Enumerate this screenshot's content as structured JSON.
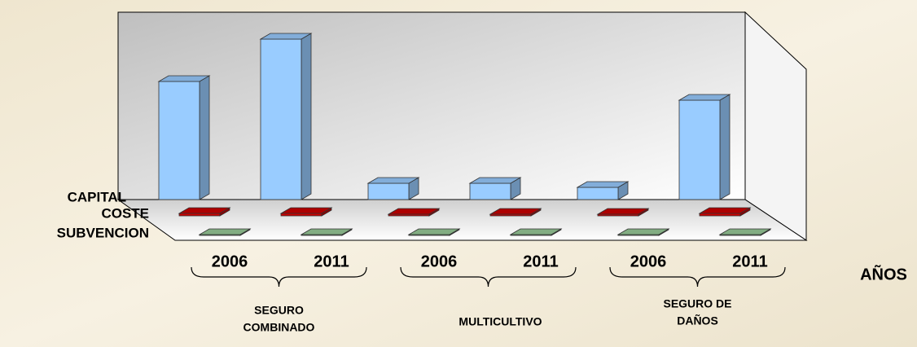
{
  "chart_data": {
    "type": "bar3d",
    "categories": [
      "2006",
      "2011",
      "2006",
      "2011",
      "2006",
      "2011"
    ],
    "groups": [
      [
        "SEGURO",
        "COMBINADO"
      ],
      [
        "MULTICULTIVO"
      ],
      [
        "SEGURO DE",
        "DAÑOS"
      ]
    ],
    "xlabel": "AÑOS",
    "series": [
      {
        "name": "CAPITAL",
        "color": "#99ccff",
        "values": [
          145,
          197,
          20,
          20,
          15,
          122
        ]
      },
      {
        "name": "COSTE",
        "color": "#cc0000",
        "values": [
          3,
          3,
          2,
          2,
          2,
          3
        ]
      },
      {
        "name": "SUBVENCION",
        "color": "#99cc99",
        "values": [
          1,
          1,
          1,
          1,
          1,
          1
        ]
      }
    ]
  }
}
